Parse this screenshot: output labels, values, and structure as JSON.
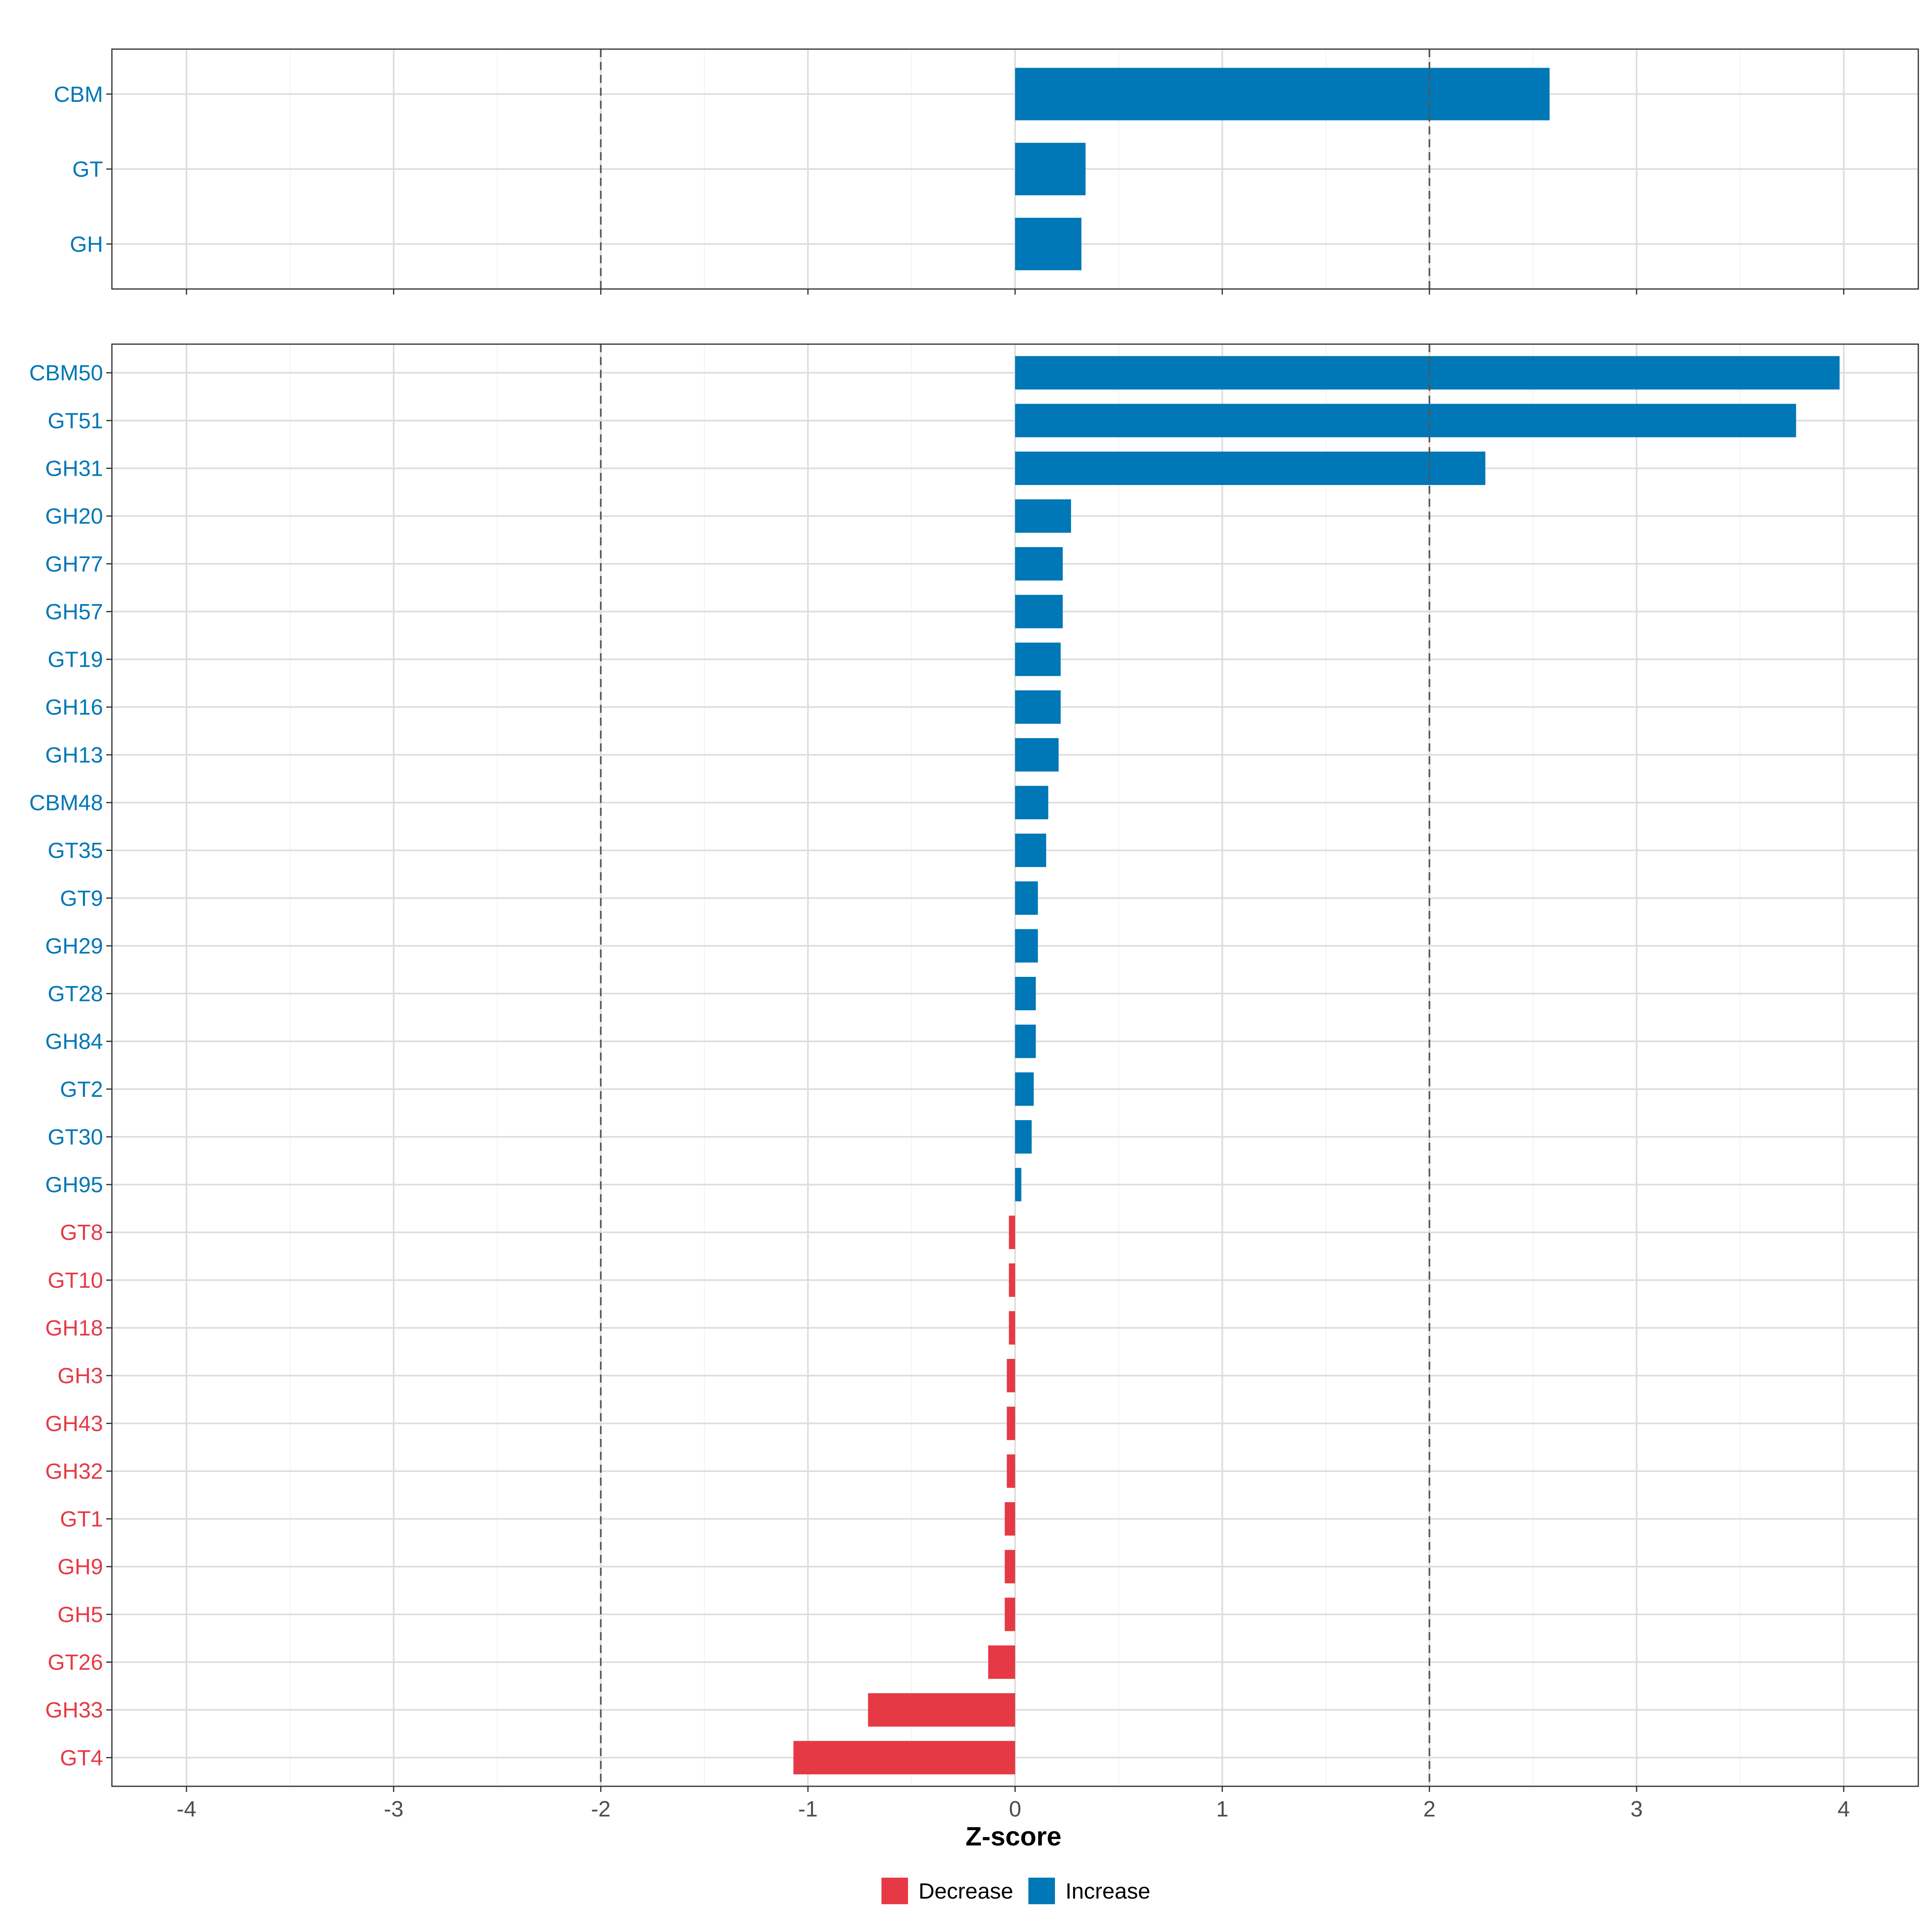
{
  "chart_data": {
    "type": "bar",
    "orientation": "horizontal",
    "xlabel": "Z-score",
    "xlim": [
      -4.36,
      4.36
    ],
    "x_ticks": [
      -4,
      -3,
      -2,
      -1,
      0,
      1,
      2,
      3,
      4
    ],
    "x_tick_labels": [
      "-4",
      "-3",
      "-2",
      "-1",
      "0",
      "1",
      "2",
      "3",
      "4"
    ],
    "threshold_lines": [
      -2,
      2
    ],
    "colors": {
      "Increase": "#0077B6",
      "Decrease": "#E63946"
    },
    "legend": {
      "position": "bottom",
      "items": [
        {
          "label": "Decrease",
          "color": "#E63946"
        },
        {
          "label": "Increase",
          "color": "#0077B6"
        }
      ]
    },
    "panels": [
      {
        "name": "class",
        "categories": [
          "CBM",
          "GT",
          "GH"
        ],
        "values": [
          2.58,
          0.34,
          0.32
        ],
        "direction": [
          "Increase",
          "Increase",
          "Increase"
        ]
      },
      {
        "name": "family",
        "categories": [
          "CBM50",
          "GT51",
          "GH31",
          "GH20",
          "GH77",
          "GH57",
          "GT19",
          "GH16",
          "GH13",
          "CBM48",
          "GT35",
          "GT9",
          "GH29",
          "GT28",
          "GH84",
          "GT2",
          "GT30",
          "GH95",
          "GT8",
          "GT10",
          "GH18",
          "GH3",
          "GH43",
          "GH32",
          "GT1",
          "GH9",
          "GH5",
          "GT26",
          "GH33",
          "GT4"
        ],
        "values": [
          3.98,
          3.77,
          2.27,
          0.27,
          0.23,
          0.23,
          0.22,
          0.22,
          0.21,
          0.16,
          0.15,
          0.11,
          0.11,
          0.1,
          0.1,
          0.09,
          0.08,
          0.03,
          -0.03,
          -0.03,
          -0.03,
          -0.04,
          -0.04,
          -0.04,
          -0.05,
          -0.05,
          -0.05,
          -0.13,
          -0.71,
          -1.07
        ],
        "direction": [
          "Increase",
          "Increase",
          "Increase",
          "Increase",
          "Increase",
          "Increase",
          "Increase",
          "Increase",
          "Increase",
          "Increase",
          "Increase",
          "Increase",
          "Increase",
          "Increase",
          "Increase",
          "Increase",
          "Increase",
          "Increase",
          "Decrease",
          "Decrease",
          "Decrease",
          "Decrease",
          "Decrease",
          "Decrease",
          "Decrease",
          "Decrease",
          "Decrease",
          "Decrease",
          "Decrease",
          "Decrease"
        ]
      }
    ]
  }
}
